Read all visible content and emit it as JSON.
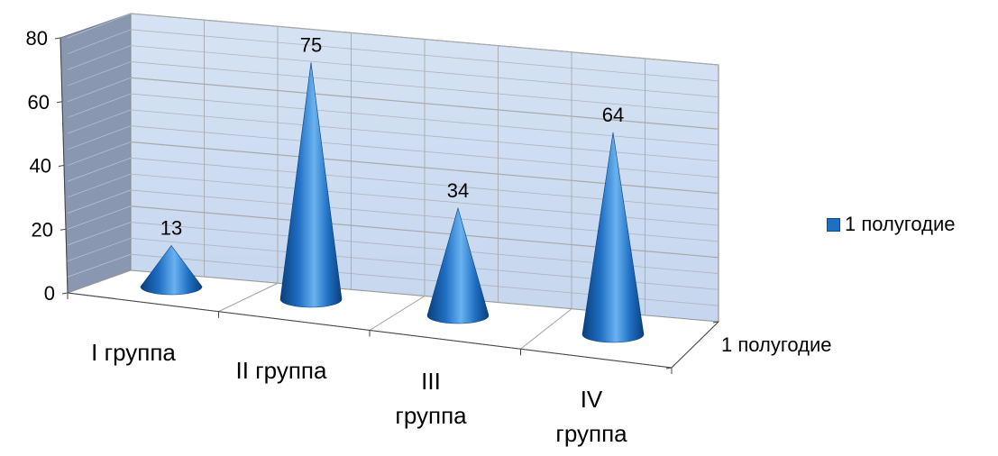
{
  "chart_data": {
    "type": "bar",
    "shape": "cone",
    "categories": [
      "I группа",
      "II группа",
      "III группа",
      "IV группа"
    ],
    "series": [
      {
        "name": "1 полугодие",
        "values": [
          13,
          75,
          34,
          64
        ]
      }
    ],
    "depth_axis_label": "1 полугодие",
    "yticks": [
      0,
      20,
      40,
      60,
      80
    ],
    "ylim": [
      0,
      80
    ],
    "grid": true,
    "legend": "right",
    "data_labels": true
  },
  "colors": {
    "cone_light": "#6ab2ef",
    "cone_mid": "#1f6fc4",
    "cone_dark": "#0b3f7c",
    "back_wall": "#c5d6ee",
    "side_wall": "#8997b0",
    "grid": "#a9a9a9"
  }
}
